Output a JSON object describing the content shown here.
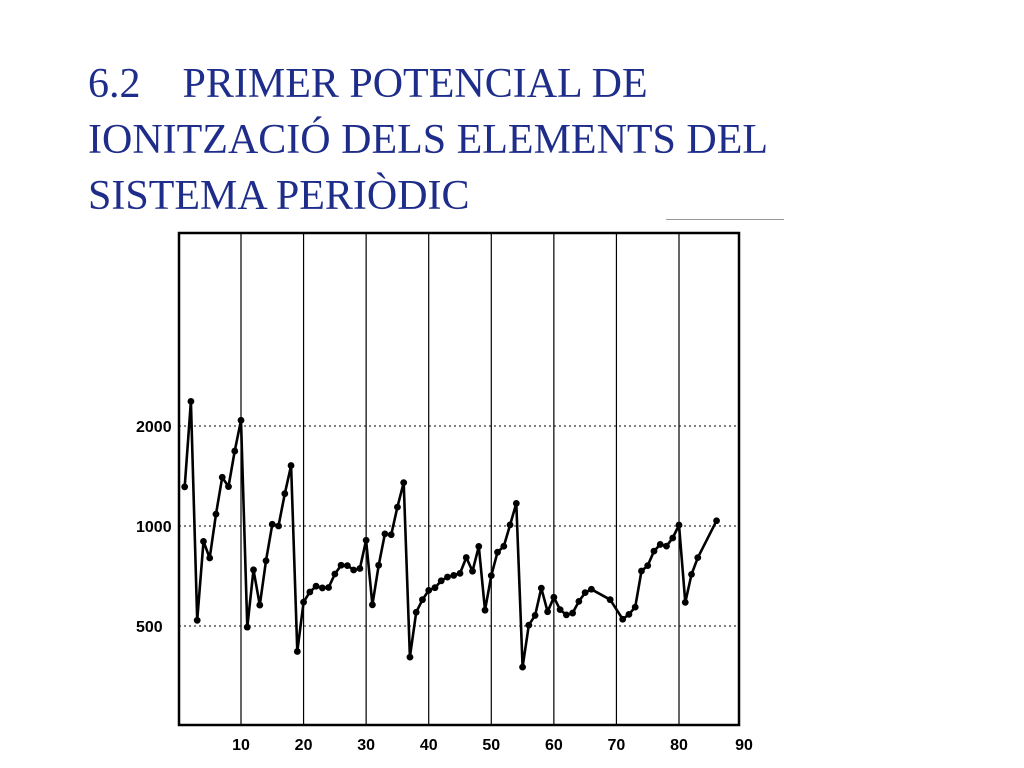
{
  "slide": {
    "title_lines": [
      "6.2    PRIMER POTENCIAL DE",
      "IONITZACIÓ DELS ELEMENTS DEL",
      "SISTEMA PERIÒDIC"
    ]
  },
  "colors": {
    "title": "#1f2d8a",
    "ink": "#000000",
    "background": "#ffffff"
  },
  "chart_data": {
    "type": "line",
    "title": "",
    "xlabel": "",
    "ylabel": "",
    "x_ticks": [
      10,
      20,
      30,
      40,
      50,
      60,
      70,
      80,
      90
    ],
    "y_ticks": [
      500,
      1000,
      2000
    ],
    "y_scale": "log",
    "xlim": [
      0.5,
      90
    ],
    "ylim": [
      250,
      3000
    ],
    "grid": "vertical lines every 10 along x; horizontal lines at the y tick values",
    "legend": "none",
    "series": [
      {
        "markers": true,
        "points": [
          [
            1,
            1312
          ],
          [
            2,
            2372
          ],
          [
            3,
            520
          ],
          [
            4,
            899
          ],
          [
            5,
            801
          ],
          [
            6,
            1086
          ],
          [
            7,
            1402
          ],
          [
            8,
            1314
          ],
          [
            9,
            1681
          ],
          [
            10,
            2081
          ],
          [
            11,
            496
          ],
          [
            12,
            738
          ],
          [
            13,
            578
          ],
          [
            14,
            786
          ],
          [
            15,
            1012
          ],
          [
            16,
            1000
          ],
          [
            17,
            1251
          ],
          [
            18,
            1521
          ],
          [
            19,
            419
          ],
          [
            20,
            590
          ],
          [
            21,
            633
          ],
          [
            22,
            659
          ],
          [
            23,
            651
          ],
          [
            24,
            653
          ],
          [
            25,
            717
          ],
          [
            26,
            762
          ],
          [
            27,
            760
          ],
          [
            28,
            737
          ],
          [
            29,
            745
          ],
          [
            30,
            906
          ],
          [
            31,
            579
          ],
          [
            32,
            762
          ],
          [
            33,
            947
          ],
          [
            34,
            941
          ],
          [
            35,
            1140
          ],
          [
            36,
            1351
          ],
          [
            37,
            403
          ],
          [
            38,
            550
          ],
          [
            39,
            600
          ],
          [
            40,
            640
          ],
          [
            41,
            652
          ],
          [
            42,
            684
          ],
          [
            43,
            702
          ],
          [
            44,
            710
          ],
          [
            45,
            720
          ],
          [
            46,
            804
          ],
          [
            47,
            731
          ],
          [
            48,
            868
          ],
          [
            49,
            558
          ],
          [
            50,
            709
          ],
          [
            51,
            834
          ],
          [
            52,
            869
          ],
          [
            53,
            1008
          ],
          [
            54,
            1170
          ],
          [
            55,
            376
          ],
          [
            56,
            503
          ],
          [
            57,
            538
          ],
          [
            58,
            650
          ],
          [
            59,
            552
          ],
          [
            60,
            610
          ],
          [
            61,
            560
          ],
          [
            62,
            540
          ],
          [
            63,
            547
          ],
          [
            64,
            593
          ],
          [
            65,
            630
          ],
          [
            66,
            645
          ],
          [
            69,
            600
          ],
          [
            71,
            524
          ],
          [
            72,
            542
          ],
          [
            73,
            570
          ],
          [
            74,
            732
          ],
          [
            75,
            760
          ],
          [
            76,
            840
          ],
          [
            77,
            880
          ],
          [
            78,
            870
          ],
          [
            79,
            920
          ],
          [
            80,
            1007
          ],
          [
            81,
            589
          ],
          [
            82,
            715
          ],
          [
            83,
            803
          ],
          [
            86,
            1037
          ]
        ]
      }
    ]
  }
}
